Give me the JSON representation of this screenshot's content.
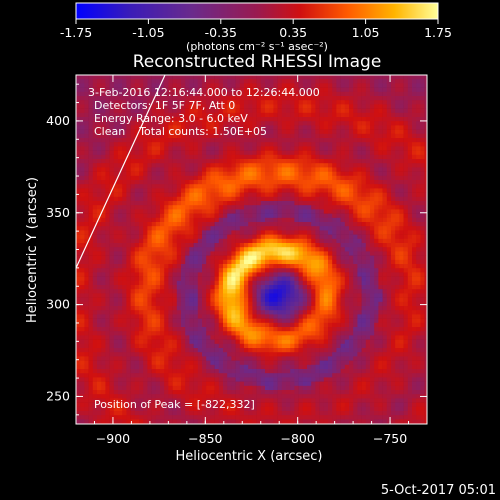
{
  "chart_data": {
    "type": "heatmap",
    "title": "Reconstructed RHESSI Image",
    "xlabel": "Heliocentric X (arcsec)",
    "ylabel": "Heliocentric Y (arcsec)",
    "xlim": [
      -920,
      -730
    ],
    "ylim": [
      235,
      425
    ],
    "xticks": [
      -900,
      -850,
      -800,
      -750
    ],
    "yticks": [
      250,
      300,
      350,
      400
    ],
    "colorbar": {
      "ticks": [
        "-1.75",
        "-1.05",
        "-0.35",
        "0.35",
        "1.05",
        "1.75"
      ],
      "range": [
        -1.75,
        1.75
      ],
      "units": "(photons cm⁻² s⁻¹ asec⁻²)",
      "colors": [
        "#0000ff",
        "#3a1cb8",
        "#6a2a8c",
        "#9a1a50",
        "#d01010",
        "#ff5a00",
        "#ffb400",
        "#ffff9a"
      ]
    },
    "grid": false,
    "peak": {
      "x": -822,
      "y": 332
    },
    "annotations": [
      "3-Feb-2016 12:16:44.000 to 12:26:44.000",
      "Detectors: 1F 5F 7F, Att 0",
      "Energy Range: 3.0 - 6.0 keV",
      "Clean    Total counts: 1.50E+05",
      "Position of Peak = [-822,332]"
    ]
  },
  "footer_date": "5-Oct-2017 05:01"
}
